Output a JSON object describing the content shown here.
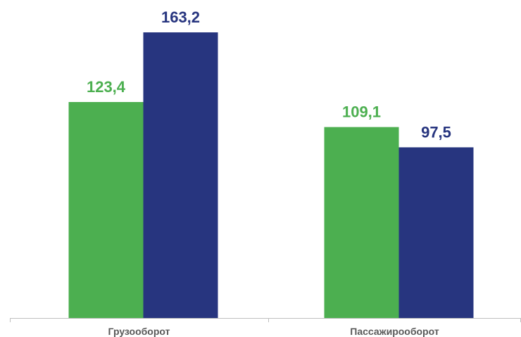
{
  "chart_data": {
    "type": "bar",
    "categories": [
      "Грузооборот",
      "Пассажирооборот"
    ],
    "series": [
      {
        "values": [
          123.4,
          109.1
        ],
        "color": "#4CAF50"
      },
      {
        "values": [
          163.2,
          97.5
        ],
        "color": "#27357F"
      }
    ],
    "data_labels": [
      [
        "123,4",
        "109,1"
      ],
      [
        "163,2",
        "97,5"
      ]
    ],
    "ylim": [
      0,
      180
    ],
    "grid": false,
    "legend": "none",
    "title": "",
    "xlabel": "",
    "ylabel": ""
  }
}
